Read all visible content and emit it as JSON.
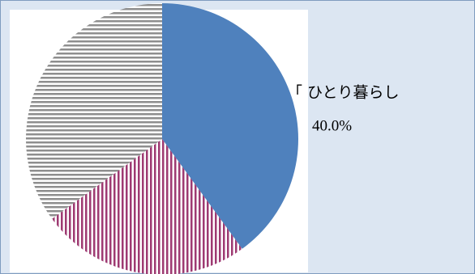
{
  "chart_data": {
    "type": "pie",
    "categories": [
      "「 ひとり暮らし",
      null,
      null
    ],
    "values": [
      40,
      25,
      35
    ],
    "value_labels": [
      "40.0%",
      null,
      null
    ],
    "colors": [
      "#4f81bd",
      "#9e3a72",
      "#8e8e8e"
    ],
    "patterns": [
      "solid",
      "vertical-stripes",
      "horizontal-stripes"
    ]
  }
}
